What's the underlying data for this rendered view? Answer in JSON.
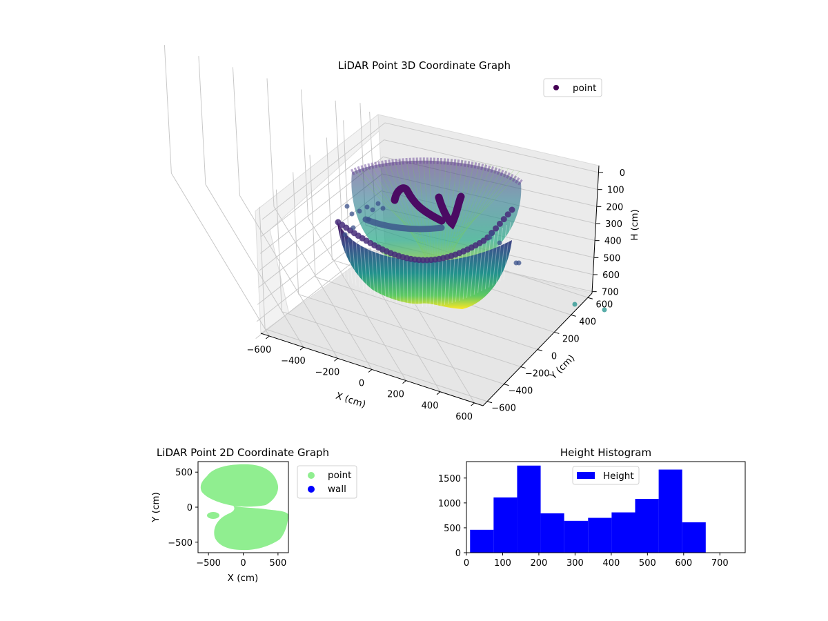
{
  "figure": {
    "colors": {
      "point_2d": "#90ee90",
      "wall_2d": "#0000ff",
      "histogram": "#0000ff",
      "legend_point_3d": "#440154",
      "colormap": [
        "#440154",
        "#3b528b",
        "#21918c",
        "#5ec962",
        "#fde725"
      ]
    }
  },
  "chart_data": [
    {
      "type": "scatter",
      "projection": "3d",
      "title": "LiDAR Point 3D Coordinate Graph",
      "xlabel": "X (cm)",
      "ylabel": "Y (cm)",
      "zlabel": "H (cm)",
      "xlim": [
        -650,
        650
      ],
      "ylim": [
        -650,
        650
      ],
      "zlim": [
        750,
        0
      ],
      "x_ticks": [
        "−600",
        "−400",
        "−200",
        "0",
        "200",
        "400",
        "600"
      ],
      "y_ticks": [
        "−600",
        "−400",
        "−200",
        "0",
        "200",
        "400",
        "600"
      ],
      "z_ticks": [
        "0",
        "100",
        "200",
        "300",
        "400",
        "500",
        "600",
        "700"
      ],
      "grid": true,
      "legend": {
        "entries": [
          "point"
        ],
        "position": "upper-right"
      },
      "series": [
        {
          "name": "point",
          "description": "dense bowl-shaped point cloud colored by height (viridis)"
        }
      ]
    },
    {
      "type": "scatter",
      "title": "LiDAR Point 2D Coordinate Graph",
      "xlabel": "X (cm)",
      "ylabel": "Y (cm)",
      "xlim": [
        -650,
        650
      ],
      "ylim": [
        -650,
        650
      ],
      "x_ticks": [
        "−500",
        "0",
        "500"
      ],
      "y_ticks": [
        "−500",
        "0",
        "500"
      ],
      "legend": {
        "entries": [
          "point",
          "wall"
        ],
        "position": "outside-right"
      },
      "series": [
        {
          "name": "point",
          "color": "#90ee90"
        },
        {
          "name": "wall",
          "color": "#0000ff"
        }
      ]
    },
    {
      "type": "bar",
      "title": "Height Histogram",
      "xlim": [
        0,
        770
      ],
      "ylim": [
        0,
        1830
      ],
      "x_ticks": [
        "0",
        "100",
        "200",
        "300",
        "400",
        "500",
        "600",
        "700"
      ],
      "y_ticks": [
        "0",
        "500",
        "1000",
        "1500"
      ],
      "legend": {
        "entries": [
          "Height"
        ],
        "position": "upper-center"
      },
      "bin_edges": [
        10,
        75,
        140,
        205,
        270,
        336,
        401,
        466,
        531,
        596,
        661
      ],
      "counts": [
        460,
        1110,
        1750,
        790,
        640,
        700,
        810,
        1080,
        1670,
        610
      ],
      "series": [
        {
          "name": "Height",
          "color": "#0000ff"
        }
      ]
    }
  ]
}
